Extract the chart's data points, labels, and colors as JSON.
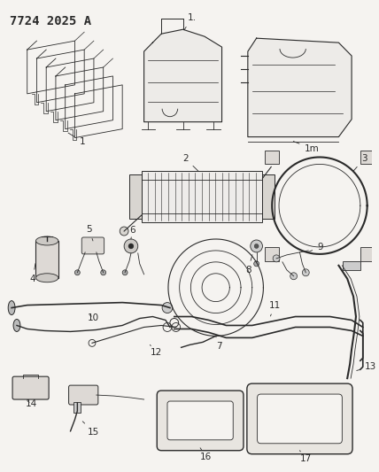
{
  "title": "7724 2025 A",
  "bg": "#f5f3f0",
  "lc": "#2a2a2a",
  "lc2": "#444444",
  "gray": "#888888",
  "title_fs": 10,
  "label_fs": 7.5
}
